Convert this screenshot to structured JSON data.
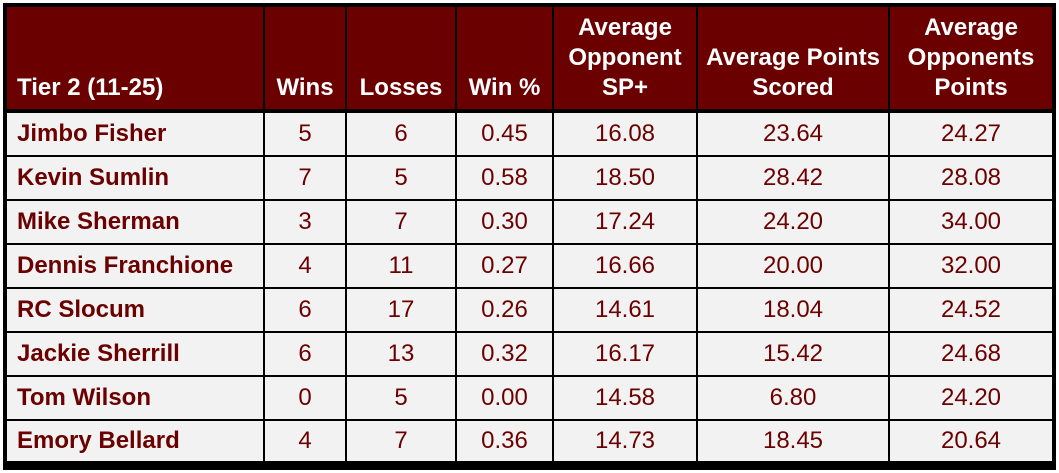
{
  "table": {
    "headers": [
      "Tier 2 (11-25)",
      "Wins",
      "Losses",
      "Win %",
      "Average Opponent SP+",
      "Average Points Scored",
      "Average Opponents Points"
    ],
    "rows": [
      [
        "Jimbo Fisher",
        "5",
        "6",
        "0.45",
        "16.08",
        "23.64",
        "24.27"
      ],
      [
        "Kevin Sumlin",
        "7",
        "5",
        "0.58",
        "18.50",
        "28.42",
        "28.08"
      ],
      [
        "Mike Sherman",
        "3",
        "7",
        "0.30",
        "17.24",
        "24.20",
        "34.00"
      ],
      [
        "Dennis Franchione",
        "4",
        "11",
        "0.27",
        "16.66",
        "20.00",
        "32.00"
      ],
      [
        "RC Slocum",
        "6",
        "17",
        "0.26",
        "14.61",
        "18.04",
        "24.52"
      ],
      [
        "Jackie Sherrill",
        "6",
        "13",
        "0.32",
        "16.17",
        "15.42",
        "24.68"
      ],
      [
        "Tom Wilson",
        "0",
        "5",
        "0.00",
        "14.58",
        "6.80",
        "24.20"
      ],
      [
        "Emory Bellard",
        "4",
        "7",
        "0.36",
        "14.73",
        "18.45",
        "20.64"
      ]
    ]
  },
  "colors": {
    "header_bg": "#6b0000",
    "header_text": "#ffffff",
    "cell_bg": "#f2f2f2",
    "cell_text": "#6b0000",
    "border": "#000000"
  }
}
